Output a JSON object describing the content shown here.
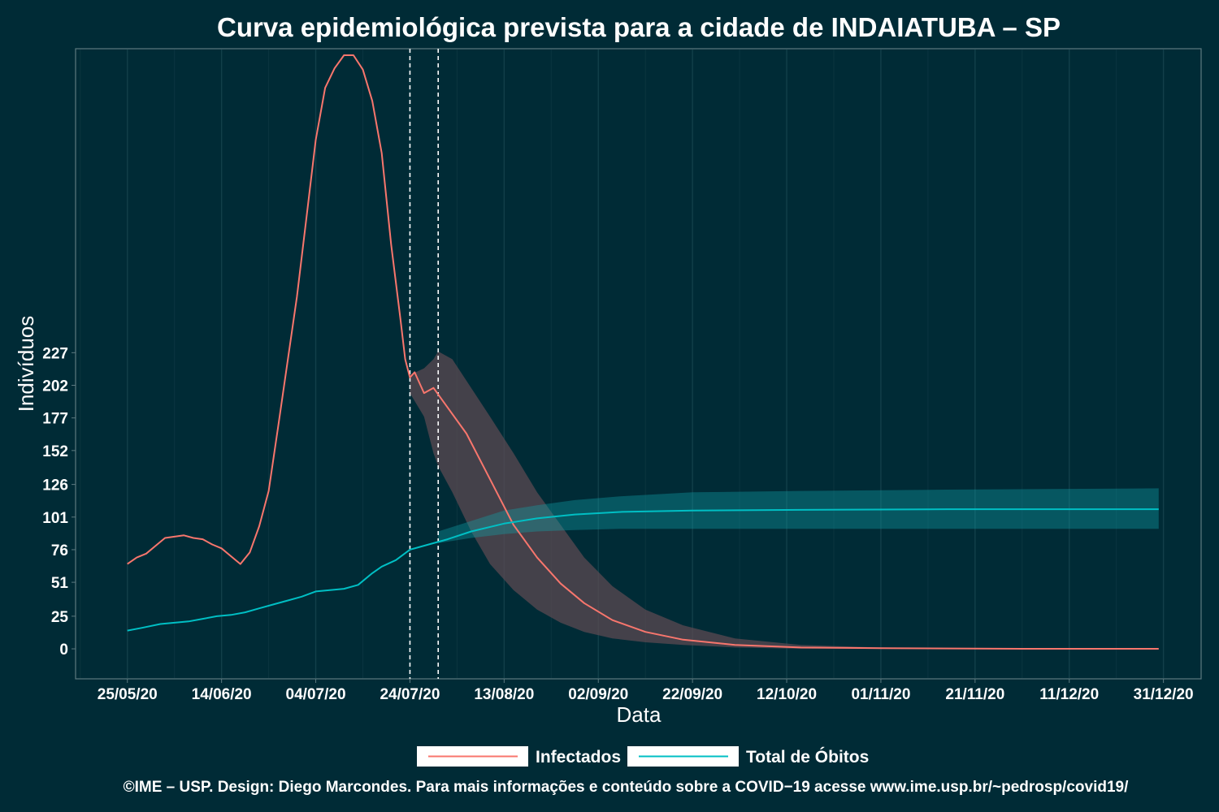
{
  "chart_data": {
    "type": "line",
    "title": "Curva epidemiológica prevista para a cidade de INDAIATUBA – SP",
    "xlabel": "Data",
    "ylabel": "Indivíduos",
    "x_ticks": [
      "25/05/20",
      "14/06/20",
      "04/07/20",
      "24/07/20",
      "13/08/20",
      "02/09/20",
      "22/09/20",
      "12/10/20",
      "01/11/20",
      "21/11/20",
      "11/12/20",
      "31/12/20"
    ],
    "y_ticks": [
      0,
      25,
      51,
      76,
      101,
      126,
      152,
      177,
      202,
      227
    ],
    "xlim": [
      "2020-05-14",
      "2021-01-08"
    ],
    "ylim": [
      -23,
      460
    ],
    "grid": "vertical",
    "legend_position": "bottom",
    "vlines": [
      "2020-07-24",
      "2020-07-30"
    ],
    "series": [
      {
        "name": "Infectados",
        "color": "#f8766d",
        "points": [
          [
            "2020-05-25",
            65
          ],
          [
            "2020-05-27",
            70
          ],
          [
            "2020-05-29",
            73
          ],
          [
            "2020-05-31",
            79
          ],
          [
            "2020-06-02",
            85
          ],
          [
            "2020-06-04",
            86
          ],
          [
            "2020-06-06",
            87
          ],
          [
            "2020-06-08",
            85
          ],
          [
            "2020-06-10",
            84
          ],
          [
            "2020-06-12",
            80
          ],
          [
            "2020-06-14",
            77
          ],
          [
            "2020-06-16",
            71
          ],
          [
            "2020-06-18",
            65
          ],
          [
            "2020-06-20",
            74
          ],
          [
            "2020-06-22",
            94
          ],
          [
            "2020-06-24",
            121
          ],
          [
            "2020-06-26",
            170
          ],
          [
            "2020-06-28",
            220
          ],
          [
            "2020-06-30",
            270
          ],
          [
            "2020-07-02",
            330
          ],
          [
            "2020-07-04",
            390
          ],
          [
            "2020-07-06",
            430
          ],
          [
            "2020-07-08",
            445
          ],
          [
            "2020-07-10",
            455
          ],
          [
            "2020-07-12",
            455
          ],
          [
            "2020-07-14",
            444
          ],
          [
            "2020-07-16",
            420
          ],
          [
            "2020-07-18",
            380
          ],
          [
            "2020-07-20",
            310
          ],
          [
            "2020-07-22",
            252
          ],
          [
            "2020-07-23",
            222
          ],
          [
            "2020-07-24",
            208
          ],
          [
            "2020-07-25",
            212
          ],
          [
            "2020-07-27",
            196
          ],
          [
            "2020-07-29",
            200
          ],
          [
            "2020-07-31",
            190
          ],
          [
            "2020-08-05",
            165
          ],
          [
            "2020-08-10",
            130
          ],
          [
            "2020-08-15",
            95
          ],
          [
            "2020-08-20",
            70
          ],
          [
            "2020-08-25",
            50
          ],
          [
            "2020-08-30",
            35
          ],
          [
            "2020-09-05",
            22
          ],
          [
            "2020-09-12",
            13
          ],
          [
            "2020-09-20",
            7
          ],
          [
            "2020-10-01",
            3
          ],
          [
            "2020-10-15",
            1
          ],
          [
            "2020-11-01",
            0.5
          ],
          [
            "2020-12-01",
            0
          ],
          [
            "2020-12-30",
            0
          ]
        ]
      },
      {
        "name": "Total de Óbitos",
        "color": "#00bfc4",
        "points": [
          [
            "2020-05-25",
            14
          ],
          [
            "2020-05-28",
            16
          ],
          [
            "2020-06-01",
            19
          ],
          [
            "2020-06-04",
            20
          ],
          [
            "2020-06-07",
            21
          ],
          [
            "2020-06-10",
            23
          ],
          [
            "2020-06-13",
            25
          ],
          [
            "2020-06-16",
            26
          ],
          [
            "2020-06-19",
            28
          ],
          [
            "2020-06-22",
            31
          ],
          [
            "2020-06-25",
            34
          ],
          [
            "2020-06-28",
            37
          ],
          [
            "2020-07-01",
            40
          ],
          [
            "2020-07-04",
            44
          ],
          [
            "2020-07-07",
            45
          ],
          [
            "2020-07-10",
            46
          ],
          [
            "2020-07-13",
            49
          ],
          [
            "2020-07-16",
            58
          ],
          [
            "2020-07-18",
            63
          ],
          [
            "2020-07-21",
            68
          ],
          [
            "2020-07-24",
            76
          ],
          [
            "2020-07-28",
            80
          ],
          [
            "2020-08-01",
            84
          ],
          [
            "2020-08-06",
            90
          ],
          [
            "2020-08-13",
            96
          ],
          [
            "2020-08-20",
            100
          ],
          [
            "2020-08-28",
            103
          ],
          [
            "2020-09-07",
            105
          ],
          [
            "2020-09-22",
            106
          ],
          [
            "2020-10-15",
            106.5
          ],
          [
            "2020-11-15",
            107
          ],
          [
            "2020-12-30",
            107
          ]
        ],
        "band": [
          [
            "2020-07-30",
            81,
            90
          ],
          [
            "2020-08-06",
            85,
            98
          ],
          [
            "2020-08-13",
            88,
            106
          ],
          [
            "2020-08-20",
            90,
            110
          ],
          [
            "2020-08-28",
            91,
            114
          ],
          [
            "2020-09-07",
            92,
            117
          ],
          [
            "2020-09-22",
            92,
            120
          ],
          [
            "2020-10-15",
            92,
            121
          ],
          [
            "2020-11-15",
            92,
            122
          ],
          [
            "2020-12-30",
            92,
            123
          ]
        ]
      }
    ],
    "infected_band": [
      [
        "2020-07-24",
        196,
        210
      ],
      [
        "2020-07-27",
        178,
        215
      ],
      [
        "2020-07-29",
        150,
        222
      ],
      [
        "2020-07-30",
        140,
        228
      ],
      [
        "2020-08-02",
        120,
        222
      ],
      [
        "2020-08-06",
        90,
        200
      ],
      [
        "2020-08-10",
        65,
        178
      ],
      [
        "2020-08-15",
        45,
        150
      ],
      [
        "2020-08-20",
        30,
        120
      ],
      [
        "2020-08-25",
        20,
        95
      ],
      [
        "2020-08-30",
        13,
        70
      ],
      [
        "2020-09-05",
        8,
        48
      ],
      [
        "2020-09-12",
        5,
        30
      ],
      [
        "2020-09-20",
        3,
        18
      ],
      [
        "2020-10-01",
        1,
        8
      ],
      [
        "2020-10-15",
        0,
        3
      ],
      [
        "2020-11-01",
        0,
        1
      ],
      [
        "2020-12-01",
        0,
        0
      ],
      [
        "2020-12-30",
        0,
        0
      ]
    ]
  },
  "legend": {
    "items": [
      {
        "label": "Infectados",
        "color": "#f8766d"
      },
      {
        "label": "Total de Óbitos",
        "color": "#00bfc4"
      }
    ]
  },
  "caption": "©IME – USP. Design: Diego Marcondes. Para mais informações e conteúdo sobre a COVID−19 acesse www.ime.usp.br/~pedrosp/covid19/"
}
